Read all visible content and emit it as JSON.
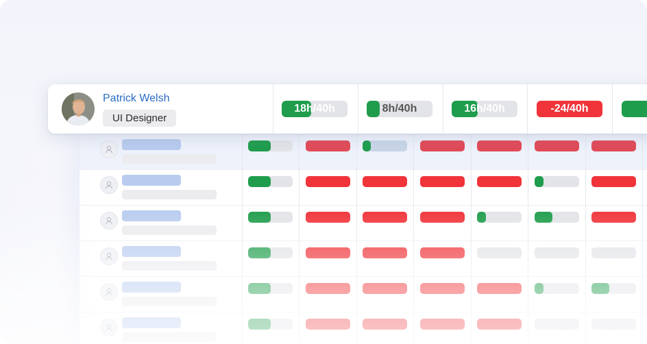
{
  "highlight": {
    "name": "Patrick Welsh",
    "role": "UI Designer",
    "weeks": [
      {
        "label": "18h/40h",
        "fill": 0.45,
        "negative": false
      },
      {
        "label": "8h/40h",
        "fill": 0.2,
        "negative": false
      },
      {
        "label": "16h/40h",
        "fill": 0.4,
        "negative": false
      },
      {
        "label": "-24/40h",
        "fill": 0,
        "negative": true
      },
      {
        "label": "",
        "fill": 1,
        "negative": false
      }
    ]
  },
  "colors": {
    "accent_name": "#2a6cc4",
    "green": "#1f9d4c",
    "red": "#f0343a",
    "gray": "#e3e4e8"
  },
  "icons": {
    "employee_avatar": "user-placeholder-icon"
  },
  "employees": [
    {
      "cells": [
        [
          "green",
          0.5
        ],
        [
          "redsoft",
          0
        ],
        [
          "blue",
          0.18
        ],
        [
          "redsoft",
          0
        ],
        [
          "redsoft",
          0
        ],
        [
          "redsoft",
          0
        ],
        [
          "redsoft",
          0
        ]
      ]
    },
    {
      "cells": [
        [
          "green",
          0.5
        ],
        [
          "red",
          0
        ],
        [
          "red",
          0
        ],
        [
          "red",
          0
        ],
        [
          "red",
          0
        ],
        [
          "green",
          0.2
        ],
        [
          "red",
          0
        ]
      ]
    },
    {
      "cells": [
        [
          "green",
          0.5
        ],
        [
          "red",
          0
        ],
        [
          "red",
          0
        ],
        [
          "red",
          0
        ],
        [
          "green",
          0.2
        ],
        [
          "green",
          0.4
        ],
        [
          "red",
          0
        ]
      ]
    },
    {
      "cells": [
        [
          "green",
          0.5
        ],
        [
          "red",
          0
        ],
        [
          "red",
          0
        ],
        [
          "red",
          0
        ],
        [
          "gray",
          0
        ],
        [
          "gray",
          0
        ],
        [
          "gray",
          0
        ]
      ]
    },
    {
      "cells": [
        [
          "green",
          0.5
        ],
        [
          "red",
          0
        ],
        [
          "red",
          0
        ],
        [
          "red",
          0
        ],
        [
          "red",
          0
        ],
        [
          "green",
          0.2
        ],
        [
          "green",
          0.4
        ]
      ]
    },
    {
      "cells": [
        [
          "green",
          0.5
        ],
        [
          "red",
          0
        ],
        [
          "red",
          0
        ],
        [
          "red",
          0
        ],
        [
          "red",
          0
        ],
        [
          "gray",
          0
        ],
        [
          "gray",
          0
        ]
      ]
    }
  ]
}
